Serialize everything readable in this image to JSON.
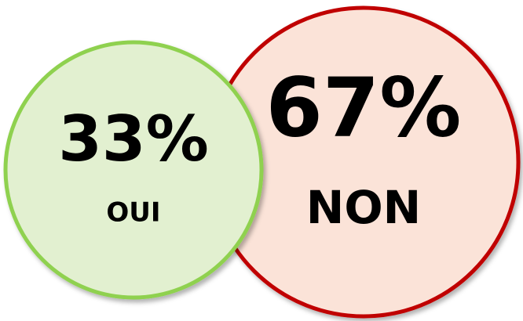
{
  "chart_data": {
    "type": "bubble",
    "categories": [
      "OUI",
      "NON"
    ],
    "values": [
      33,
      67
    ],
    "value_labels": [
      "33%",
      "67%"
    ],
    "colors": [
      "#8fd14f",
      "#c00000"
    ],
    "fills": [
      "#e2f0d0",
      "#fbe3d8"
    ]
  }
}
